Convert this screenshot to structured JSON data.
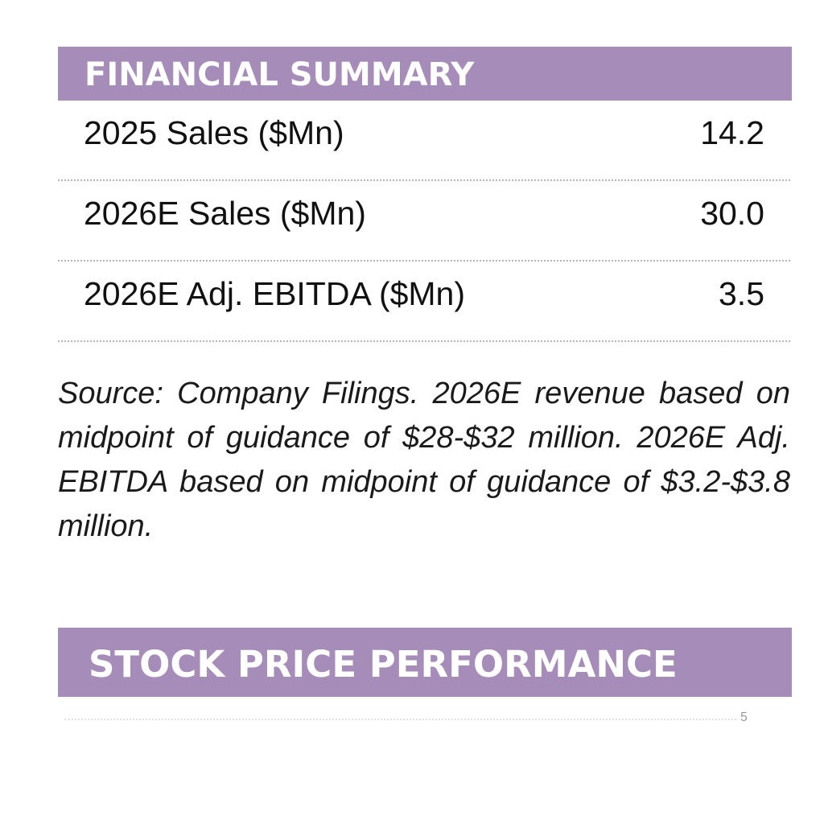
{
  "financial_summary": {
    "title": "FINANCIAL SUMMARY",
    "rows": [
      {
        "label": "2025 Sales ($Mn)",
        "value": "14.2"
      },
      {
        "label": "2026E Sales ($Mn)",
        "value": "30.0"
      },
      {
        "label": "2026E Adj. EBITDA ($Mn)",
        "value": "3.5"
      }
    ],
    "note": "Source: Company Filings. 2026E revenue based on midpoint of guidance of $28-$32 million. 2026E Adj. EBITDA based on midpoint of guidance of $3.2-$3.8 million."
  },
  "stock_price_performance": {
    "title": "STOCK PRICE PERFORMANCE",
    "y_tick_label": "5"
  },
  "colors": {
    "header_background": "#a68cb9",
    "header_text": "#ffffff",
    "divider": "#b4b4b4"
  }
}
